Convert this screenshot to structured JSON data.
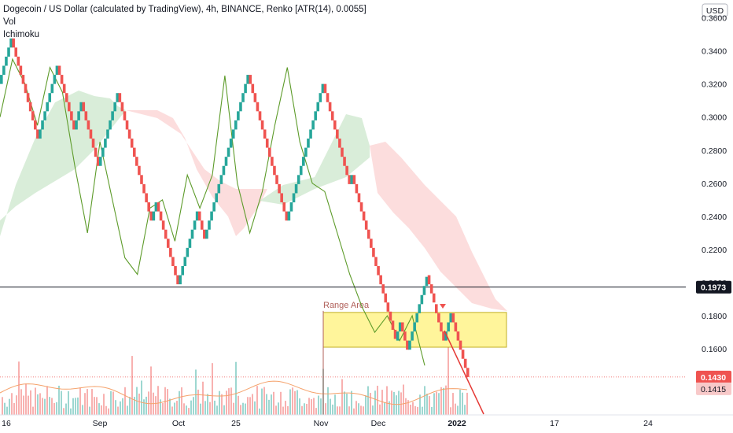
{
  "header": {
    "title": "Dogecoin / US Dollar (calculated by TradingView), 4h, BINANCE, Renko [ATR(14), 0.0055]",
    "indicators": [
      "Vol",
      "Ichimoku"
    ]
  },
  "colors": {
    "up": "#26a69a",
    "down": "#ef5350",
    "lagging_span": "#5d9b2a",
    "cloud_bull": "#cfe8d0",
    "cloud_bear": "#fbd4d4",
    "range_fill": "#fff48a",
    "range_border": "#b7a200",
    "annotation": "#b0605a",
    "trend_line": "#e53935"
  },
  "chart_data": {
    "type": "renko",
    "currency_label": "USD",
    "y_axis": {
      "range": [
        0.128,
        0.362
      ],
      "ticks": [
        "0.1600",
        "0.1800",
        "0.2000",
        "0.2200",
        "0.2400",
        "0.2600",
        "0.2800",
        "0.3000",
        "0.3200",
        "0.3400",
        "0.3600"
      ]
    },
    "x_axis": {
      "ticks": [
        "16",
        "Sep",
        "Oct",
        "25",
        "Nov",
        "Dec",
        "2022",
        "17",
        "24"
      ]
    },
    "price_labels": [
      {
        "value": "0.1973",
        "kind": "horizontal-line"
      },
      {
        "value": "0.1430",
        "kind": "last-price"
      },
      {
        "value": "0.1415",
        "kind": "moving-average"
      }
    ],
    "horizontal_line": 0.1973,
    "range_area": {
      "label": "Range Area",
      "low": 0.161,
      "high": 0.182
    },
    "renko_path": [
      0.32,
      0.3475,
      0.331,
      0.287,
      0.298,
      0.331,
      0.2925,
      0.309,
      0.2705,
      0.3145,
      0.265,
      0.2375,
      0.2485,
      0.221,
      0.199,
      0.243,
      0.2265,
      0.2705,
      0.309,
      0.3255,
      0.298,
      0.2595,
      0.2375,
      0.265,
      0.298,
      0.32,
      0.2925,
      0.2595,
      0.265,
      0.2375,
      0.2045,
      0.165,
      0.176,
      0.1595,
      0.176,
      0.2045,
      0.187,
      0.165,
      0.1815,
      0.1595,
      0.143
    ],
    "lagging_span": [
      0.3,
      0.335,
      0.32,
      0.295,
      0.33,
      0.315,
      0.27,
      0.23,
      0.285,
      0.25,
      0.215,
      0.205,
      0.245,
      0.25,
      0.225,
      0.265,
      0.245,
      0.265,
      0.325,
      0.26,
      0.23,
      0.255,
      0.295,
      0.33,
      0.285,
      0.26,
      0.255,
      0.23,
      0.205,
      0.185,
      0.17,
      0.18,
      0.165,
      0.18,
      0.15
    ]
  }
}
